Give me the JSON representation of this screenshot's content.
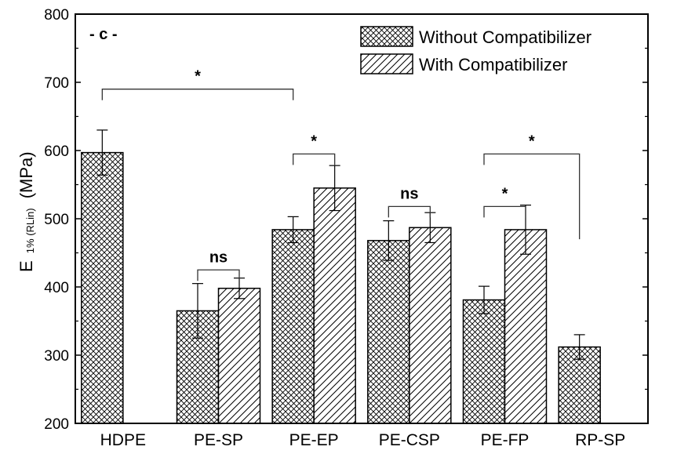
{
  "chart_data": {
    "type": "bar",
    "panel_label": "- c -",
    "ylabel_main": "E",
    "ylabel_sub": "1% (RLin)",
    "ylabel_unit": "(MPa)",
    "xlabel": "",
    "ylim": [
      200,
      800
    ],
    "yticks": [
      "200",
      "300",
      "400",
      "500",
      "600",
      "700",
      "800"
    ],
    "categories": [
      "HDPE",
      "PE-SP",
      "PE-EP",
      "PE-CSP",
      "PE-FP",
      "RP-SP"
    ],
    "legend_position": "top-right",
    "grid": false,
    "series": [
      {
        "name": "Without Compatibilizer",
        "pattern": "crosshatch",
        "values": [
          597,
          365,
          484,
          468,
          381,
          312
        ],
        "errors": [
          33,
          40,
          19,
          29,
          20,
          18
        ]
      },
      {
        "name": "With Compatibilizer",
        "pattern": "diagonal",
        "values": [
          null,
          398,
          545,
          487,
          484,
          null
        ],
        "errors": [
          null,
          15,
          33,
          22,
          36,
          null
        ]
      }
    ],
    "significance": [
      {
        "label": "*",
        "from": {
          "cat": 0,
          "series": 0
        },
        "to": {
          "cat": 2,
          "series": 0
        },
        "level": 690
      },
      {
        "label": "ns",
        "from": {
          "cat": 1,
          "series": 0
        },
        "to": {
          "cat": 1,
          "series": 1
        },
        "level": 425
      },
      {
        "label": "*",
        "from": {
          "cat": 2,
          "series": 0
        },
        "to": {
          "cat": 2,
          "series": 1
        },
        "level": 595
      },
      {
        "label": "ns",
        "from": {
          "cat": 3,
          "series": 0
        },
        "to": {
          "cat": 3,
          "series": 1
        },
        "level": 518
      },
      {
        "label": "*",
        "from": {
          "cat": 4,
          "series": 0
        },
        "to": {
          "cat": 4,
          "series": 1
        },
        "level": 518
      },
      {
        "label": "*",
        "from": {
          "cat": 4,
          "series": 0
        },
        "to": {
          "cat": 5,
          "series": 0
        },
        "level": 595
      }
    ]
  }
}
